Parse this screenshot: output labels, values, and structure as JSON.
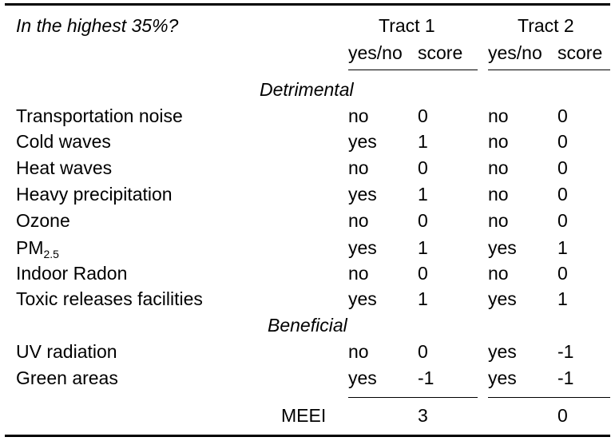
{
  "table": {
    "corner_header": "In the highest 35%?",
    "tract1": {
      "title": "Tract 1",
      "col_yesno": "yes/no",
      "col_score": "score"
    },
    "tract2": {
      "title": "Tract 2",
      "col_yesno": "yes/no",
      "col_score": "score"
    },
    "sections": [
      {
        "title": "Detrimental",
        "rows": [
          {
            "label": "Transportation noise",
            "t1_yesno": "no",
            "t1_score": "0",
            "t2_yesno": "no",
            "t2_score": "0"
          },
          {
            "label": "Cold waves",
            "t1_yesno": "yes",
            "t1_score": "1",
            "t2_yesno": "no",
            "t2_score": "0"
          },
          {
            "label": "Heat waves",
            "t1_yesno": "no",
            "t1_score": "0",
            "t2_yesno": "no",
            "t2_score": "0"
          },
          {
            "label": "Heavy precipitation",
            "t1_yesno": "yes",
            "t1_score": "1",
            "t2_yesno": "no",
            "t2_score": "0"
          },
          {
            "label": "Ozone",
            "t1_yesno": "no",
            "t1_score": "0",
            "t2_yesno": "no",
            "t2_score": "0"
          },
          {
            "label": "PM",
            "label_sub": "2.5",
            "t1_yesno": "yes",
            "t1_score": "1",
            "t2_yesno": "yes",
            "t2_score": "1"
          },
          {
            "label": "Indoor Radon",
            "t1_yesno": "no",
            "t1_score": "0",
            "t2_yesno": "no",
            "t2_score": "0"
          },
          {
            "label": "Toxic releases facilities",
            "t1_yesno": "yes",
            "t1_score": "1",
            "t2_yesno": "yes",
            "t2_score": "1"
          }
        ]
      },
      {
        "title": "Beneficial",
        "rows": [
          {
            "label": "UV radiation",
            "t1_yesno": "no",
            "t1_score": "0",
            "t2_yesno": "yes",
            "t2_score": "-1"
          },
          {
            "label": "Green areas",
            "t1_yesno": "yes",
            "t1_score": "-1",
            "t2_yesno": "yes",
            "t2_score": "-1"
          }
        ]
      }
    ],
    "total": {
      "label": "MEEI",
      "t1_score": "3",
      "t2_score": "0"
    }
  }
}
